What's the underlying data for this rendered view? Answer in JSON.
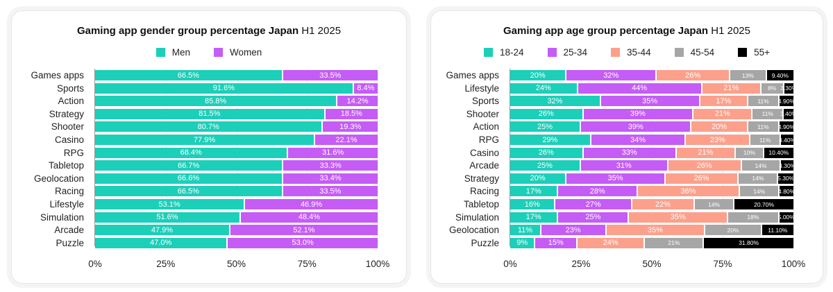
{
  "chart_data": [
    {
      "type": "bar",
      "orientation": "horizontal",
      "stacked": true,
      "title_bold": "Gaming app gender group percentage Japan",
      "title_suffix": "H1 2025",
      "xlim": [
        0,
        100
      ],
      "xticks": [
        "0%",
        "25%",
        "50%",
        "75%",
        "100%"
      ],
      "legend_position": "top",
      "categories": [
        "Games apps",
        "Sports",
        "Action",
        "Strategy",
        "Shooter",
        "Casino",
        "RPG",
        "Tabletop",
        "Geolocation",
        "Racing",
        "Lifestyle",
        "Simulation",
        "Arcade",
        "Puzzle"
      ],
      "series": [
        {
          "name": "Men",
          "color": "#1ccfb9",
          "values": [
            66.5,
            91.6,
            85.8,
            81.5,
            80.7,
            77.9,
            68.4,
            66.7,
            66.6,
            66.5,
            53.1,
            51.6,
            47.9,
            47.0
          ],
          "labels": [
            "66.5%",
            "91.6%",
            "85.8%",
            "81.5%",
            "80.7%",
            "77.9%",
            "68.4%",
            "66.7%",
            "66.6%",
            "66.5%",
            "53.1%",
            "51.6%",
            "47.9%",
            "47.0%"
          ]
        },
        {
          "name": "Women",
          "color": "#c55cf6",
          "values": [
            33.5,
            8.4,
            14.2,
            18.5,
            19.3,
            22.1,
            31.6,
            33.3,
            33.4,
            33.5,
            46.9,
            48.4,
            52.1,
            53.0
          ],
          "labels": [
            "33.5%",
            "8.4%",
            "14.2%",
            "18.5%",
            "19.3%",
            "22.1%",
            "31.6%",
            "33.3%",
            "33.4%",
            "33.5%",
            "46.9%",
            "48.4%",
            "52.1%",
            "53.0%"
          ]
        }
      ]
    },
    {
      "type": "bar",
      "orientation": "horizontal",
      "stacked": true,
      "title_bold": "Gaming app age group percentage Japan",
      "title_suffix": "H1 2025",
      "xlim": [
        0,
        100
      ],
      "xticks": [
        "0%",
        "25%",
        "50%",
        "75%",
        "100%"
      ],
      "legend_position": "top",
      "categories": [
        "Games apps",
        "Lifestyle",
        "Sports",
        "Shooter",
        "Action",
        "RPG",
        "Casino",
        "Arcade",
        "Strategy",
        "Racing",
        "Tabletop",
        "Simulation",
        "Geolocation",
        "Puzzle"
      ],
      "series": [
        {
          "name": "18-24",
          "color": "#1ccfb9",
          "values": [
            20,
            24,
            32,
            26,
            25,
            29,
            26,
            25,
            20,
            17,
            16,
            17,
            11,
            9
          ],
          "labels": [
            "20%",
            "24%",
            "32%",
            "26%",
            "25%",
            "29%",
            "26%",
            "25%",
            "20%",
            "17%",
            "16%",
            "17%",
            "11%",
            "9%"
          ]
        },
        {
          "name": "25-34",
          "color": "#c55cf6",
          "values": [
            32,
            44,
            35,
            39,
            39,
            34,
            33,
            31,
            35,
            28,
            27,
            25,
            23,
            15
          ],
          "labels": [
            "32%",
            "44%",
            "35%",
            "39%",
            "39%",
            "34%",
            "33%",
            "31%",
            "35%",
            "28%",
            "27%",
            "25%",
            "23%",
            "15%"
          ]
        },
        {
          "name": "35-44",
          "color": "#fca08c",
          "values": [
            26,
            21,
            17,
            21,
            20,
            23,
            21,
            26,
            26,
            36,
            22,
            35,
            35,
            24
          ],
          "labels": [
            "26%",
            "21%",
            "17%",
            "21%",
            "20%",
            "23%",
            "21%",
            "26%",
            "26%",
            "36%",
            "22%",
            "35%",
            "35%",
            "24%"
          ]
        },
        {
          "name": "45-54",
          "color": "#a6a6a6",
          "values": [
            13,
            8,
            11,
            11,
            11,
            11,
            10,
            14,
            14,
            14,
            14,
            18,
            20,
            21
          ],
          "labels": [
            "13%",
            "8%",
            "11%",
            "11%",
            "11%",
            "11%",
            "10%",
            "14%",
            "14%",
            "14%",
            "14%",
            "18%",
            "20%",
            "21%"
          ]
        },
        {
          "name": "55+",
          "color": "#000000",
          "values": [
            9.4,
            3.3,
            4.9,
            3.4,
            4.9,
            4.4,
            10.4,
            4.3,
            5.3,
            4.8,
            20.7,
            5.0,
            11.1,
            31.8
          ],
          "labels": [
            "9.40%",
            "3.30%",
            "4.90%",
            "3.40%",
            "4.90%",
            "4.40%",
            "10.40%",
            "4.30%",
            "5.30%",
            "4.80%",
            "20.70%",
            "5.00%",
            "11.10%",
            "31.80%"
          ]
        }
      ]
    }
  ]
}
